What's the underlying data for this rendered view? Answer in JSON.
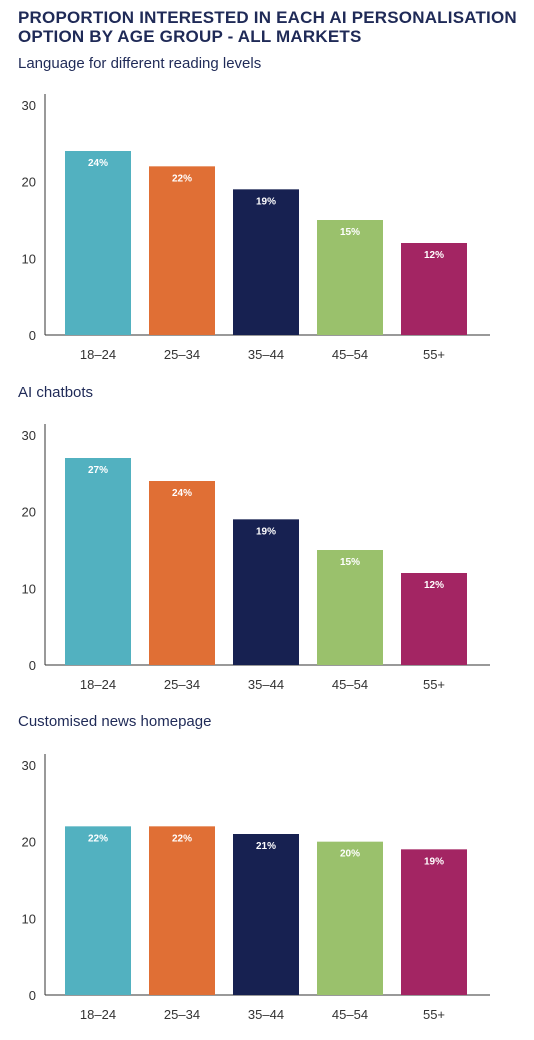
{
  "title": "PROPORTION INTERESTED IN EACH AI PERSONALISATION OPTION BY AGE GROUP - ALL MARKETS",
  "colors": {
    "18-24": "#52b1c0",
    "25-34": "#e06f35",
    "35-44": "#172151",
    "45-54": "#9ac16c",
    "55+": "#a32563",
    "text": "#1f2a57",
    "axis": "#333333"
  },
  "chart_data": [
    {
      "type": "bar",
      "title": "Language for different reading levels",
      "categories": [
        "18–24",
        "25–34",
        "35–44",
        "45–54",
        "55+"
      ],
      "values": [
        24,
        22,
        19,
        15,
        12
      ],
      "labels": [
        "24%",
        "22%",
        "19%",
        "15%",
        "12%"
      ],
      "yticks": [
        "0",
        "10",
        "20",
        "30"
      ],
      "ylim": [
        0,
        30
      ],
      "grid": false,
      "legend": "none"
    },
    {
      "type": "bar",
      "title": "AI chatbots",
      "categories": [
        "18–24",
        "25–34",
        "35–44",
        "45–54",
        "55+"
      ],
      "values": [
        27,
        24,
        19,
        15,
        12
      ],
      "labels": [
        "27%",
        "24%",
        "19%",
        "15%",
        "12%"
      ],
      "yticks": [
        "0",
        "10",
        "20",
        "30"
      ],
      "ylim": [
        0,
        30
      ],
      "grid": false,
      "legend": "none"
    },
    {
      "type": "bar",
      "title": "Customised news homepage",
      "categories": [
        "18–24",
        "25–34",
        "35–44",
        "45–54",
        "55+"
      ],
      "values": [
        22,
        22,
        21,
        20,
        19
      ],
      "labels": [
        "22%",
        "22%",
        "21%",
        "20%",
        "19%"
      ],
      "yticks": [
        "0",
        "10",
        "20",
        "30"
      ],
      "ylim": [
        0,
        30
      ],
      "grid": false,
      "legend": "none"
    }
  ]
}
